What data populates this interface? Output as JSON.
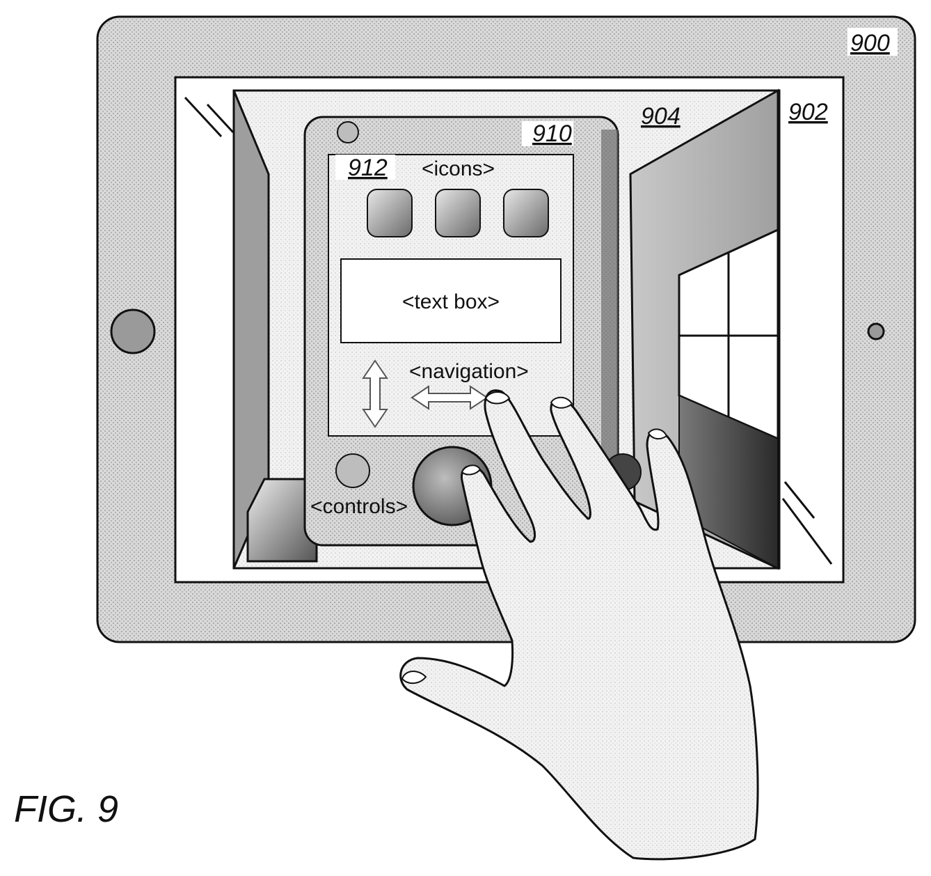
{
  "figure": {
    "caption": "FIG. 9",
    "refs": {
      "device": "900",
      "display": "902",
      "scene": "904",
      "virtual_device": "910",
      "virtual_screen": "912"
    },
    "labels": {
      "icons": "<icons>",
      "text_box": "<text box>",
      "navigation": "<navigation>",
      "controls": "<controls>"
    }
  }
}
